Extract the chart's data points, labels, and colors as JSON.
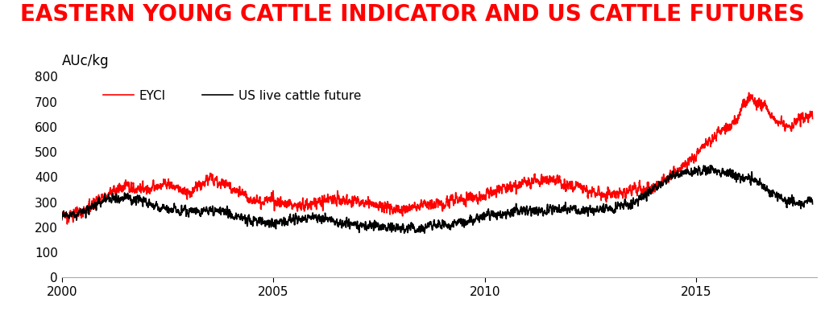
{
  "title": "EASTERN YOUNG CATTLE INDICATOR AND US CATTLE FUTURES",
  "ylabel": "AUc/kg",
  "title_color": "#FF0000",
  "title_fontsize": 20,
  "ylabel_fontsize": 12,
  "eyci_color": "#FF0000",
  "us_color": "#000000",
  "background_color": "#FFFFFF",
  "ylim": [
    0,
    800
  ],
  "yticks": [
    0,
    100,
    200,
    300,
    400,
    500,
    600,
    700,
    800
  ],
  "xlim_start": 2000.0,
  "xlim_end": 2017.85,
  "xticks": [
    2000,
    2005,
    2010,
    2015
  ],
  "legend_eyci": "EYCI",
  "legend_us": "US live cattle future",
  "line_width": 1.2
}
